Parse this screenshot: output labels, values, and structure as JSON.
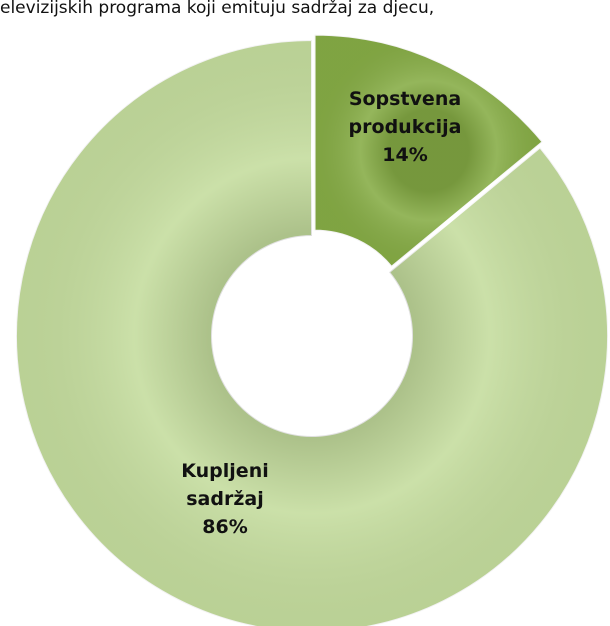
{
  "chart_data": {
    "type": "donut",
    "title": "elevizijskih programa koji emituju sadržaj za djecu,",
    "categories": [
      "Sopstvena produkcija",
      "Kupljeni sadržaj"
    ],
    "values": [
      14,
      86
    ],
    "value_labels": [
      "14%",
      "86%"
    ],
    "colors": [
      "#86ac45",
      "#c4dc9d"
    ]
  }
}
